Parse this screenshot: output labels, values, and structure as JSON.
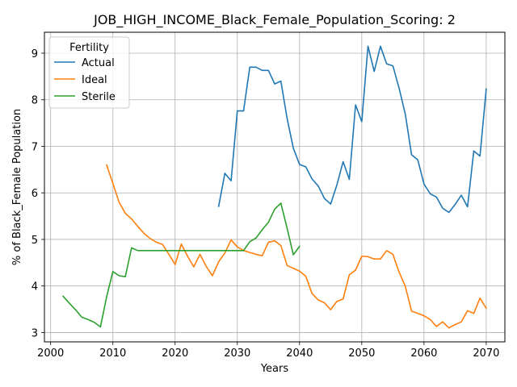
{
  "chart_data": {
    "type": "line",
    "title": "JOB_HIGH_INCOME_Black_Female_Population_Scoring: 2",
    "xlabel": "Years",
    "ylabel": "% of Black_Female Population",
    "xlim": [
      1999,
      2073
    ],
    "ylim": [
      2.8,
      9.45
    ],
    "xticks": [
      2000,
      2010,
      2020,
      2030,
      2040,
      2050,
      2060,
      2070
    ],
    "yticks": [
      3,
      4,
      5,
      6,
      7,
      8,
      9
    ],
    "grid": true,
    "legend": {
      "title": "Fertility",
      "placement": "upper-left"
    },
    "series": [
      {
        "name": "Actual",
        "color": "#1f77b4",
        "x": [
          2027,
          2028,
          2029,
          2030,
          2031,
          2032,
          2033,
          2034,
          2035,
          2036,
          2037,
          2038,
          2039,
          2040,
          2041,
          2042,
          2043,
          2044,
          2045,
          2046,
          2047,
          2048,
          2049,
          2050,
          2051,
          2052,
          2053,
          2054,
          2055,
          2056,
          2057,
          2058,
          2059,
          2060,
          2061,
          2062,
          2063,
          2064,
          2065,
          2066,
          2067,
          2068,
          2069,
          2070
        ],
        "y": [
          5.71,
          6.42,
          6.26,
          7.76,
          7.76,
          8.7,
          8.7,
          8.63,
          8.63,
          8.34,
          8.4,
          7.6,
          6.96,
          6.61,
          6.56,
          6.3,
          6.15,
          5.88,
          5.76,
          6.17,
          6.67,
          6.29,
          7.89,
          7.53,
          9.15,
          8.61,
          9.15,
          8.77,
          8.73,
          8.25,
          7.69,
          6.82,
          6.71,
          6.19,
          5.98,
          5.91,
          5.67,
          5.58,
          5.75,
          5.95,
          5.7,
          6.9,
          6.79,
          8.23
        ]
      },
      {
        "name": "Ideal",
        "color": "#ff7f0e",
        "x": [
          2009,
          2010,
          2011,
          2012,
          2013,
          2014,
          2015,
          2016,
          2017,
          2018,
          2019,
          2020,
          2021,
          2022,
          2023,
          2024,
          2025,
          2026,
          2027,
          2028,
          2029,
          2030,
          2031,
          2032,
          2033,
          2034,
          2035,
          2036,
          2037,
          2038,
          2039,
          2040,
          2041,
          2042,
          2043,
          2044,
          2045,
          2046,
          2047,
          2048,
          2049,
          2050,
          2051,
          2052,
          2053,
          2054,
          2055,
          2056,
          2057,
          2058,
          2059,
          2060,
          2061,
          2062,
          2063,
          2064,
          2065,
          2066,
          2067,
          2068,
          2069,
          2070
        ],
        "y": [
          6.6,
          6.2,
          5.8,
          5.56,
          5.44,
          5.28,
          5.13,
          5.02,
          4.94,
          4.89,
          4.68,
          4.46,
          4.9,
          4.64,
          4.41,
          4.68,
          4.42,
          4.22,
          4.52,
          4.71,
          4.99,
          4.84,
          4.76,
          4.72,
          4.68,
          4.65,
          4.94,
          4.97,
          4.87,
          4.44,
          4.38,
          4.32,
          4.21,
          3.84,
          3.7,
          3.64,
          3.49,
          3.67,
          3.72,
          4.24,
          4.34,
          4.64,
          4.63,
          4.58,
          4.58,
          4.76,
          4.68,
          4.3,
          3.99,
          3.46,
          3.41,
          3.36,
          3.28,
          3.13,
          3.23,
          3.1,
          3.17,
          3.23,
          3.47,
          3.41,
          3.74,
          3.52
        ]
      },
      {
        "name": "Sterile",
        "color": "#2ca02c",
        "x": [
          2002,
          2003,
          2004,
          2005,
          2006,
          2007,
          2008,
          2009,
          2010,
          2011,
          2012,
          2013,
          2014,
          2015,
          2016,
          2017,
          2018,
          2019,
          2020,
          2021,
          2022,
          2023,
          2024,
          2025,
          2026,
          2027,
          2028,
          2029,
          2030,
          2031,
          2032,
          2033,
          2034,
          2035,
          2036,
          2037,
          2038,
          2039,
          2040
        ],
        "y": [
          3.78,
          3.63,
          3.49,
          3.33,
          3.28,
          3.22,
          3.12,
          3.77,
          4.31,
          4.22,
          4.2,
          4.82,
          4.76,
          4.76,
          4.76,
          4.76,
          4.76,
          4.76,
          4.76,
          4.76,
          4.76,
          4.76,
          4.76,
          4.76,
          4.76,
          4.76,
          4.76,
          4.76,
          4.76,
          4.76,
          4.95,
          5.03,
          5.21,
          5.37,
          5.65,
          5.78,
          5.24,
          4.67,
          4.85
        ]
      }
    ]
  }
}
